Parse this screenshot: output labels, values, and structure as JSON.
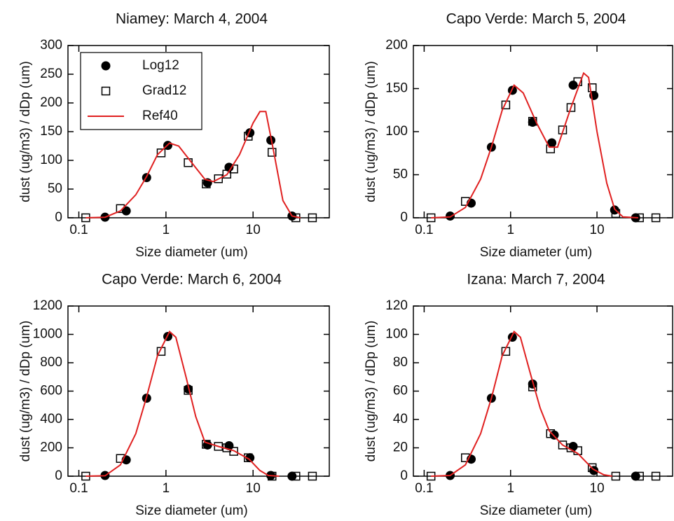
{
  "chart_data": [
    {
      "type": "scatter",
      "title": "Niamey: March 4, 2004",
      "xlabel": "Size diameter (um)",
      "ylabel": "dust (ug/m3) / dDp (um)",
      "xscale": "log",
      "xlim": [
        0.075,
        75
      ],
      "xticks": [
        0.1,
        1,
        10
      ],
      "ylim": [
        0,
        300
      ],
      "yticks": [
        0,
        50,
        100,
        150,
        200,
        250,
        300
      ],
      "legend": "upper left",
      "series": [
        {
          "name": "Log12",
          "style": "filled-circle",
          "color": "#000000",
          "x": [
            0.2,
            0.35,
            0.6,
            1.05,
            3,
            5.3,
            9.2,
            16,
            28
          ],
          "values": [
            1,
            12,
            70,
            126,
            61,
            88,
            148,
            135,
            3
          ]
        },
        {
          "name": "Grad12",
          "style": "open-square",
          "color": "#000000",
          "x": [
            0.12,
            0.3,
            0.88,
            1.8,
            2.9,
            4,
            5,
            6,
            8.8,
            16.5,
            31,
            48
          ],
          "values": [
            0,
            16,
            113,
            96,
            59,
            68,
            76,
            85,
            142,
            114,
            0,
            0
          ]
        },
        {
          "name": "Ref40",
          "style": "line",
          "color": "#e02020",
          "x": [
            0.12,
            0.2,
            0.3,
            0.45,
            0.6,
            0.8,
            1.1,
            1.4,
            2,
            2.8,
            3.5,
            5,
            7,
            10,
            12,
            14,
            17,
            22,
            28,
            35
          ],
          "values": [
            0,
            1,
            12,
            40,
            72,
            110,
            130,
            125,
            95,
            67,
            63,
            75,
            110,
            165,
            185,
            185,
            120,
            30,
            3,
            0
          ]
        }
      ]
    },
    {
      "type": "scatter",
      "title": "Capo Verde: March 5, 2004",
      "xlabel": "Size diameter (um)",
      "ylabel": "dust (ug/m3) / dDp (um)",
      "xscale": "log",
      "xlim": [
        0.075,
        75
      ],
      "xticks": [
        0.1,
        1,
        10
      ],
      "ylim": [
        0,
        200
      ],
      "yticks": [
        0,
        50,
        100,
        150,
        200
      ],
      "series": [
        {
          "style": "filled-circle",
          "color": "#000000",
          "x": [
            0.2,
            0.35,
            0.6,
            1.05,
            1.8,
            3,
            5.3,
            9.2,
            16,
            28
          ],
          "values": [
            2,
            17,
            82,
            148,
            111,
            87,
            154,
            142,
            9,
            0
          ]
        },
        {
          "style": "open-square",
          "color": "#000000",
          "x": [
            0.12,
            0.3,
            0.88,
            1.8,
            2.9,
            4,
            5,
            6,
            8.8,
            16.5,
            31,
            48
          ],
          "values": [
            0,
            19,
            131,
            112,
            80,
            102,
            128,
            158,
            151,
            5,
            0,
            0
          ]
        },
        {
          "style": "line",
          "color": "#e02020",
          "x": [
            0.12,
            0.2,
            0.3,
            0.45,
            0.6,
            0.8,
            1.1,
            1.4,
            2,
            2.8,
            3.5,
            5,
            7,
            8,
            10,
            13,
            16,
            20,
            30
          ],
          "values": [
            0,
            1,
            12,
            45,
            82,
            125,
            154,
            145,
            110,
            82,
            82,
            128,
            168,
            163,
            100,
            40,
            10,
            1,
            0
          ]
        }
      ]
    },
    {
      "type": "scatter",
      "title": "Capo Verde: March 6, 2004",
      "xlabel": "Size diameter (um)",
      "ylabel": "dust (ug/m3) / dDp (um)",
      "xscale": "log",
      "xlim": [
        0.075,
        75
      ],
      "xticks": [
        0.1,
        1,
        10
      ],
      "ylim": [
        0,
        1200
      ],
      "yticks": [
        0,
        200,
        400,
        600,
        800,
        1000,
        1200
      ],
      "series": [
        {
          "style": "filled-circle",
          "color": "#000000",
          "x": [
            0.2,
            0.35,
            0.6,
            1.05,
            1.8,
            3,
            5.3,
            9.2,
            16,
            28
          ],
          "values": [
            5,
            115,
            550,
            985,
            615,
            220,
            215,
            130,
            5,
            0
          ]
        },
        {
          "style": "open-square",
          "color": "#000000",
          "x": [
            0.12,
            0.3,
            0.88,
            1.8,
            2.9,
            4,
            5,
            6,
            8.8,
            16.5,
            31,
            48
          ],
          "values": [
            0,
            125,
            880,
            605,
            225,
            210,
            200,
            175,
            130,
            0,
            0,
            0
          ]
        },
        {
          "style": "line",
          "color": "#e02020",
          "x": [
            0.12,
            0.2,
            0.3,
            0.45,
            0.6,
            0.8,
            1.1,
            1.3,
            1.7,
            2.2,
            2.8,
            4,
            6,
            9,
            12,
            15,
            20
          ],
          "values": [
            0,
            3,
            80,
            300,
            560,
            850,
            1020,
            980,
            700,
            420,
            240,
            210,
            180,
            120,
            40,
            5,
            0
          ]
        }
      ]
    },
    {
      "type": "scatter",
      "title": "Izana: March 7, 2004",
      "xlabel": "Size diameter (um)",
      "ylabel": "dust (ug/m3) / dDp (um)",
      "xscale": "log",
      "xlim": [
        0.075,
        75
      ],
      "xticks": [
        0.1,
        1,
        10
      ],
      "ylim": [
        0,
        120
      ],
      "yticks": [
        0,
        20,
        40,
        60,
        80,
        100,
        120
      ],
      "series": [
        {
          "style": "filled-circle",
          "color": "#000000",
          "x": [
            0.2,
            0.35,
            0.6,
            1.05,
            1.8,
            3.2,
            5.3,
            9.2,
            28
          ],
          "values": [
            0.5,
            12,
            55,
            98,
            65,
            29,
            21,
            4,
            0
          ]
        },
        {
          "style": "open-square",
          "color": "#000000",
          "x": [
            0.12,
            0.3,
            0.88,
            1.8,
            2.9,
            4,
            5,
            6,
            8.8,
            16.5,
            31,
            48
          ],
          "values": [
            0,
            13,
            88,
            63,
            30,
            22,
            20,
            18,
            6,
            0,
            0,
            0
          ]
        },
        {
          "style": "line",
          "color": "#e02020",
          "x": [
            0.12,
            0.2,
            0.3,
            0.45,
            0.6,
            0.8,
            1.1,
            1.3,
            1.7,
            2.2,
            2.8,
            4,
            6,
            9,
            12,
            15
          ],
          "values": [
            0,
            0.5,
            8,
            30,
            55,
            85,
            102,
            98,
            72,
            48,
            32,
            22,
            16,
            5,
            1,
            0
          ]
        }
      ]
    }
  ]
}
